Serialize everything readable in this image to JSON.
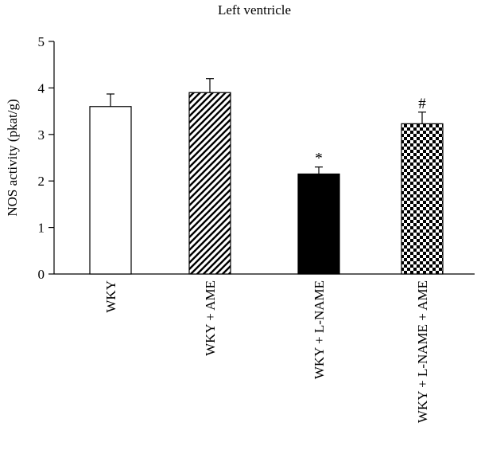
{
  "chart_data": {
    "type": "bar",
    "title": "Left ventricle",
    "xlabel": "",
    "ylabel": "NOS activity (pkat/g)",
    "ylim": [
      0,
      5
    ],
    "yticks": [
      0,
      1,
      2,
      3,
      4,
      5
    ],
    "grid": false,
    "categories": [
      "WKY",
      "WKY + AME",
      "WKY + L-NAME",
      "WKY + L-NAME + AME"
    ],
    "values": [
      3.6,
      3.9,
      2.15,
      3.23
    ],
    "errors": [
      0.27,
      0.3,
      0.15,
      0.25
    ],
    "annotations": [
      "",
      "",
      "*",
      "#"
    ],
    "fills": [
      "white",
      "diagonal-stripes",
      "black",
      "checkerboard"
    ]
  }
}
